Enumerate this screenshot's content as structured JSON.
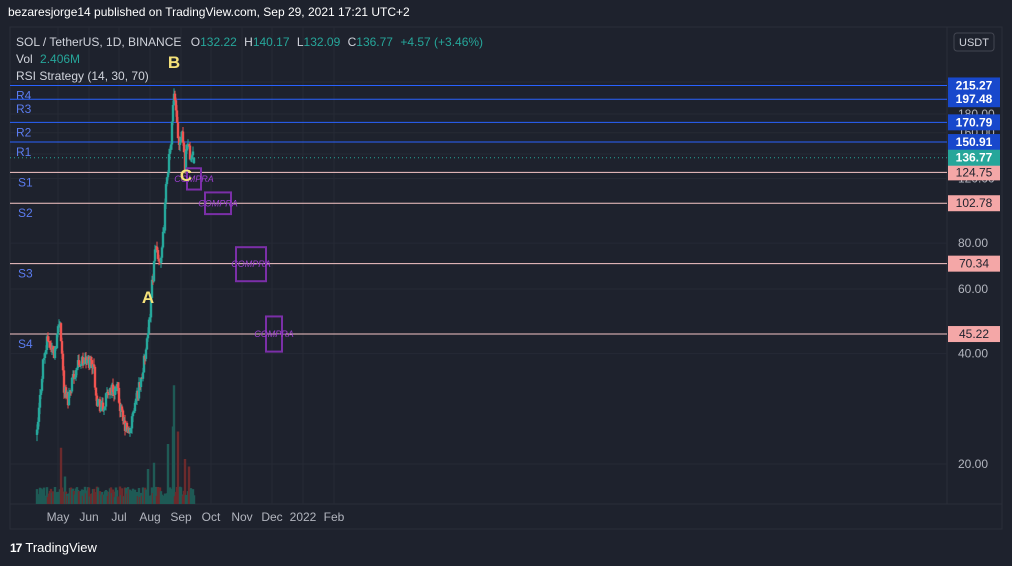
{
  "header": {
    "publisher": "bezaresjorge14 published on TradingView.com, Sep 29, 2021 17:21 UTC+2"
  },
  "legend": {
    "symbol": "SOL / TetherUS, 1D, BINANCE",
    "o_label": "O",
    "o_value": "132.22",
    "h_label": "H",
    "h_value": "140.17",
    "l_label": "L",
    "l_value": "132.09",
    "c_label": "C",
    "c_value": "136.77",
    "change": "+4.57 (+3.46%)",
    "vol_label": "Vol",
    "vol_value": "2.406M",
    "strategy": "RSI Strategy (14, 30, 70)"
  },
  "currency_badge": "USDT",
  "footer": {
    "brand": "TradingView",
    "mark": "17"
  },
  "colors": {
    "background": "#1e222d",
    "up": "#26a69a",
    "down": "#ef5350",
    "resistance": "#2962ff",
    "support": "#f7c7c7",
    "annotation_box": "#7b2fa8",
    "wave_label": "#f5e27a",
    "last_price": "#26a69a"
  },
  "chart_data": {
    "type": "candlestick",
    "y_scale": "log",
    "y_ticks": [
      "220.00",
      "180.00",
      "160.00",
      "140.00",
      "120.00",
      "80.00",
      "60.00",
      "40.00",
      "20.00"
    ],
    "x_ticks": [
      "May",
      "Jun",
      "Jul",
      "Aug",
      "Sep",
      "Oct",
      "Nov",
      "Dec",
      "2022",
      "Feb"
    ],
    "last_price": "136.77",
    "resistance_levels": [
      {
        "label": "R4",
        "value": "215.27"
      },
      {
        "label": "R3",
        "value": "197.48"
      },
      {
        "label": "R2",
        "value": "170.79"
      },
      {
        "label": "R1",
        "value": "150.91"
      }
    ],
    "support_levels": [
      {
        "label": "S1",
        "value": "124.75"
      },
      {
        "label": "S2",
        "value": "102.78"
      },
      {
        "label": "S3",
        "value": "70.34"
      },
      {
        "label": "S4",
        "value": "45.22"
      }
    ],
    "wave_labels": [
      {
        "text": "A",
        "date": "2021-08-14",
        "value": 55
      },
      {
        "text": "B",
        "date": "2021-09-09",
        "value": 240
      },
      {
        "text": "C",
        "date": "2021-09-21",
        "value": 118
      }
    ],
    "buy_zones": [
      {
        "text": "COMPRA",
        "start": "2021-09-22",
        "end": "2021-10-06",
        "low": 112,
        "high": 128
      },
      {
        "text": "COMPRA",
        "start": "2021-10-10",
        "end": "2021-11-05",
        "low": 96,
        "high": 110
      },
      {
        "text": "COMPRA",
        "start": "2021-11-10",
        "end": "2021-12-10",
        "low": 63,
        "high": 78
      },
      {
        "text": "COMPRA",
        "start": "2021-12-10",
        "end": "2021-12-26",
        "low": 40.5,
        "high": 50.5
      }
    ],
    "price_path": [
      {
        "date": "2021-04-25",
        "value": 24
      },
      {
        "date": "2021-05-01",
        "value": 38
      },
      {
        "date": "2021-05-06",
        "value": 44
      },
      {
        "date": "2021-05-12",
        "value": 40
      },
      {
        "date": "2021-05-18",
        "value": 50
      },
      {
        "date": "2021-05-22",
        "value": 32
      },
      {
        "date": "2021-05-26",
        "value": 30
      },
      {
        "date": "2021-05-30",
        "value": 34
      },
      {
        "date": "2021-06-06",
        "value": 38
      },
      {
        "date": "2021-06-12",
        "value": 38
      },
      {
        "date": "2021-06-20",
        "value": 38
      },
      {
        "date": "2021-06-24",
        "value": 30
      },
      {
        "date": "2021-06-30",
        "value": 28
      },
      {
        "date": "2021-07-06",
        "value": 32
      },
      {
        "date": "2021-07-14",
        "value": 32
      },
      {
        "date": "2021-07-20",
        "value": 26
      },
      {
        "date": "2021-07-26",
        "value": 24
      },
      {
        "date": "2021-08-02",
        "value": 30
      },
      {
        "date": "2021-08-08",
        "value": 35
      },
      {
        "date": "2021-08-14",
        "value": 44
      },
      {
        "date": "2021-08-18",
        "value": 62
      },
      {
        "date": "2021-08-22",
        "value": 78
      },
      {
        "date": "2021-08-27",
        "value": 70
      },
      {
        "date": "2021-08-30",
        "value": 90
      },
      {
        "date": "2021-09-02",
        "value": 125
      },
      {
        "date": "2021-09-05",
        "value": 140
      },
      {
        "date": "2021-09-08",
        "value": 185
      },
      {
        "date": "2021-09-09",
        "value": 200
      },
      {
        "date": "2021-09-12",
        "value": 170
      },
      {
        "date": "2021-09-14",
        "value": 150
      },
      {
        "date": "2021-09-17",
        "value": 165
      },
      {
        "date": "2021-09-20",
        "value": 130
      },
      {
        "date": "2021-09-22",
        "value": 152
      },
      {
        "date": "2021-09-25",
        "value": 138
      },
      {
        "date": "2021-09-29",
        "value": 136.77
      }
    ],
    "volume_relative": [
      {
        "date": "2021-05-19",
        "value": 0.45
      },
      {
        "date": "2021-05-23",
        "value": 0.22
      },
      {
        "date": "2021-08-14",
        "value": 0.28
      },
      {
        "date": "2021-08-20",
        "value": 0.33
      },
      {
        "date": "2021-09-03",
        "value": 0.48
      },
      {
        "date": "2021-09-08",
        "value": 0.62
      },
      {
        "date": "2021-09-09",
        "value": 0.95
      },
      {
        "date": "2021-09-13",
        "value": 0.58
      },
      {
        "date": "2021-09-20",
        "value": 0.36
      },
      {
        "date": "2021-09-24",
        "value": 0.3
      }
    ]
  }
}
